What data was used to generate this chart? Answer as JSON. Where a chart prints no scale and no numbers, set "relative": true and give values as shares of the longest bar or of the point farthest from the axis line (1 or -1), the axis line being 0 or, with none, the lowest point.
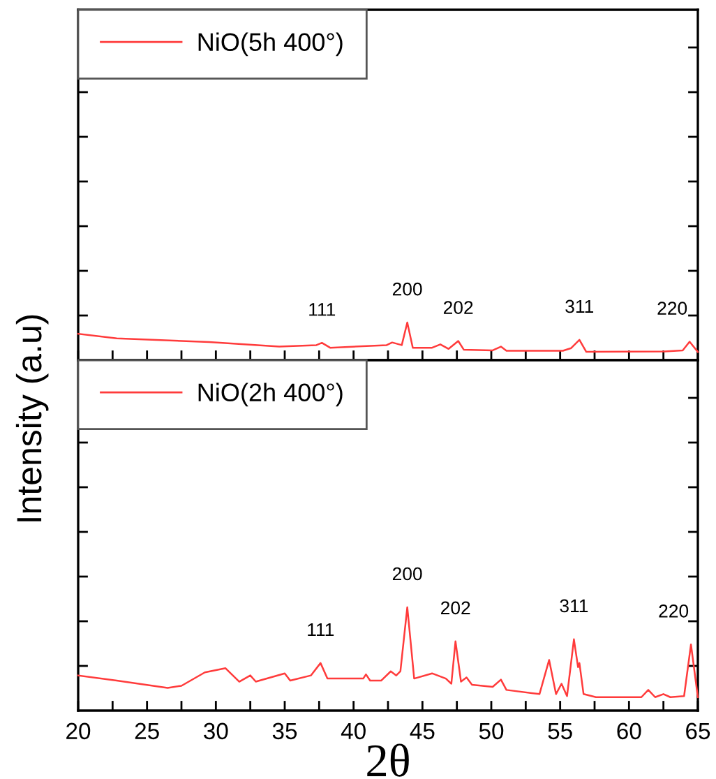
{
  "chart_data": [
    {
      "type": "line",
      "relative": true,
      "tick_labels": false,
      "legend": "top left",
      "marker": "none",
      "line_style": "solid",
      "grid": false,
      "xlim": [
        20,
        65
      ],
      "xticks": [
        {
          "value": 20,
          "label": null
        },
        {
          "value": 22.5,
          "label": null
        },
        {
          "value": 25,
          "label": null
        },
        {
          "value": 27.5,
          "label": null
        },
        {
          "value": 30,
          "label": null
        },
        {
          "value": 32.5,
          "label": null
        },
        {
          "value": 35,
          "label": null
        },
        {
          "value": 37.5,
          "label": null
        },
        {
          "value": 40,
          "label": null
        },
        {
          "value": 42.5,
          "label": null
        },
        {
          "value": 45,
          "label": null
        },
        {
          "value": 47.5,
          "label": null
        },
        {
          "value": 50,
          "label": null
        },
        {
          "value": 52.5,
          "label": null
        },
        {
          "value": 55,
          "label": null
        },
        {
          "value": 57.5,
          "label": null
        },
        {
          "value": 60,
          "label": null
        },
        {
          "value": 62.5,
          "label": null
        },
        {
          "value": 65,
          "label": null
        }
      ],
      "ylabel": "Intensity (a.u)",
      "series": [
        {
          "name": "NiO(5h 400°)",
          "color": "#ff3b3b",
          "x": [
            20.0,
            22.8,
            29.5,
            34.6,
            37.3,
            37.7,
            38.3,
            42.4,
            42.8,
            43.5,
            43.9,
            44.3,
            45.7,
            46.3,
            46.9,
            47.6,
            48.0,
            50.1,
            50.7,
            51.1,
            55.2,
            55.8,
            56.4,
            56.9,
            62.6,
            63.9,
            64.4,
            65.0
          ],
          "values": [
            0.7,
            0.58,
            0.48,
            0.36,
            0.4,
            0.46,
            0.33,
            0.4,
            0.47,
            0.4,
            1.0,
            0.33,
            0.33,
            0.42,
            0.3,
            0.51,
            0.28,
            0.26,
            0.36,
            0.25,
            0.25,
            0.32,
            0.54,
            0.22,
            0.23,
            0.26,
            0.49,
            0.22
          ]
        }
      ],
      "annotations": [
        {
          "text": "111",
          "x": 37.7,
          "y": 0.46
        },
        {
          "text": "200",
          "x": 43.9,
          "y": 1.0
        },
        {
          "text": "202",
          "x": 47.6,
          "y": 0.51
        },
        {
          "text": "311",
          "x": 56.4,
          "y": 0.54
        },
        {
          "text": "220",
          "x": 64.4,
          "y": 0.49
        }
      ]
    },
    {
      "type": "line",
      "relative": true,
      "tick_labels": "x",
      "legend": "top left",
      "marker": "none",
      "line_style": "solid",
      "grid": false,
      "xlim": [
        20,
        65
      ],
      "xticks": [
        20,
        {
          "value": 22.5,
          "label": null
        },
        25,
        {
          "value": 27.5,
          "label": null
        },
        30,
        {
          "value": 32.5,
          "label": null
        },
        35,
        {
          "value": 37.5,
          "label": null
        },
        40,
        {
          "value": 42.5,
          "label": null
        },
        45,
        {
          "value": 47.5,
          "label": null
        },
        50,
        {
          "value": 52.5,
          "label": null
        },
        55,
        {
          "value": 57.5,
          "label": null
        },
        60,
        {
          "value": 62.5,
          "label": null
        },
        65
      ],
      "xlabel": "2θ",
      "series": [
        {
          "name": "NiO(2h 400°)",
          "color": "#ff3b3b",
          "x": [
            20.0,
            22.8,
            26.5,
            27.5,
            29.2,
            30.7,
            31.7,
            32.5,
            32.9,
            35.0,
            35.4,
            36.9,
            37.6,
            38.1,
            40.7,
            40.9,
            41.2,
            42.0,
            42.7,
            43.1,
            43.4,
            43.9,
            44.4,
            45.7,
            46.7,
            47.1,
            47.4,
            47.8,
            48.2,
            48.6,
            50.1,
            50.7,
            51.1,
            53.5,
            54.2,
            54.7,
            55.1,
            55.5,
            56.0,
            56.3,
            56.4,
            56.7,
            57.6,
            60.9,
            61.4,
            61.9,
            62.5,
            63.0,
            64.0,
            64.5,
            65.0
          ],
          "values": [
            0.34,
            0.29,
            0.22,
            0.24,
            0.37,
            0.41,
            0.28,
            0.34,
            0.28,
            0.36,
            0.29,
            0.34,
            0.46,
            0.31,
            0.31,
            0.35,
            0.29,
            0.29,
            0.38,
            0.34,
            0.38,
            1.0,
            0.31,
            0.36,
            0.31,
            0.26,
            0.67,
            0.28,
            0.32,
            0.25,
            0.23,
            0.3,
            0.2,
            0.16,
            0.49,
            0.16,
            0.26,
            0.14,
            0.69,
            0.42,
            0.46,
            0.16,
            0.13,
            0.13,
            0.2,
            0.13,
            0.16,
            0.13,
            0.14,
            0.64,
            0.13
          ]
        }
      ],
      "annotations": [
        {
          "text": "111",
          "x": 37.6,
          "y": 0.46
        },
        {
          "text": "200",
          "x": 43.9,
          "y": 1.0
        },
        {
          "text": "202",
          "x": 47.4,
          "y": 0.67
        },
        {
          "text": "311",
          "x": 56.0,
          "y": 0.69
        },
        {
          "text": "220",
          "x": 64.5,
          "y": 0.64
        }
      ]
    }
  ]
}
